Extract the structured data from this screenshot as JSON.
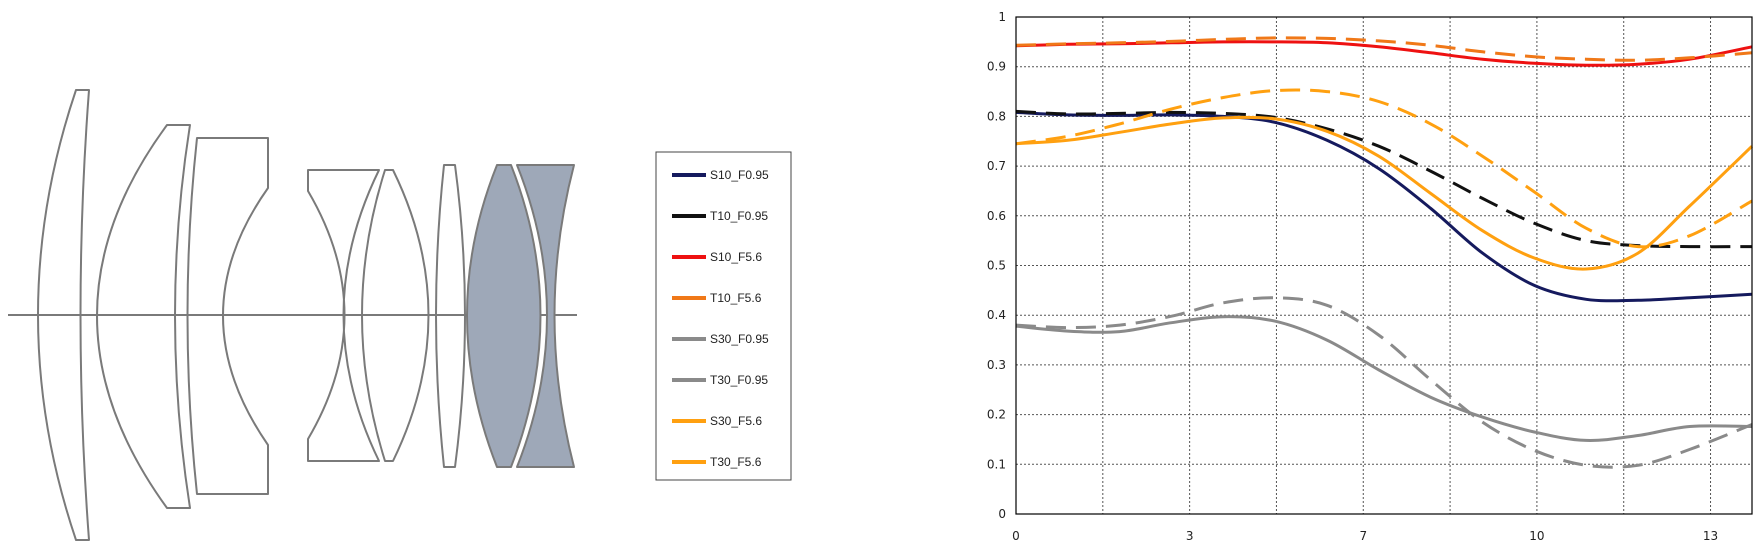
{
  "chart_data": {
    "type": "line",
    "title": "",
    "xlabel": "",
    "ylabel": "",
    "xlim": [
      0,
      14.2
    ],
    "ylim": [
      0,
      1
    ],
    "grid": true,
    "legend_placement": "left of plot",
    "x_ticks": [
      {
        "value": 0,
        "label": "0"
      },
      {
        "value": 3.35,
        "label": "3"
      },
      {
        "value": 6.7,
        "label": "7"
      },
      {
        "value": 10.05,
        "label": "10"
      },
      {
        "value": 13.4,
        "label": "13"
      }
    ],
    "x_minor_gridlines": [
      1.675,
      5.025,
      8.375,
      11.725
    ],
    "y_ticks": [
      {
        "value": 0,
        "label": "0"
      },
      {
        "value": 0.1,
        "label": "0.1"
      },
      {
        "value": 0.2,
        "label": "0.2"
      },
      {
        "value": 0.3,
        "label": "0.3"
      },
      {
        "value": 0.4,
        "label": "0.4"
      },
      {
        "value": 0.5,
        "label": "0.5"
      },
      {
        "value": 0.6,
        "label": "0.6"
      },
      {
        "value": 0.7,
        "label": "0.7"
      },
      {
        "value": 0.8,
        "label": "0.8"
      },
      {
        "value": 0.9,
        "label": "0.9"
      },
      {
        "value": 1,
        "label": "1"
      }
    ],
    "series": [
      {
        "name": "S10_F0.95",
        "color": "#151a5e",
        "dash": "solid",
        "x": [
          0,
          1,
          2,
          3,
          4,
          5,
          6,
          7,
          8,
          9,
          10,
          11,
          12,
          13,
          14.2
        ],
        "y": [
          0.808,
          0.803,
          0.802,
          0.803,
          0.8,
          0.788,
          0.752,
          0.695,
          0.615,
          0.525,
          0.46,
          0.432,
          0.43,
          0.435,
          0.442
        ]
      },
      {
        "name": "T10_F0.95",
        "color": "#111111",
        "dash": "dashed",
        "x": [
          0,
          1,
          2,
          3,
          4,
          5,
          6,
          7,
          8,
          9,
          10,
          11,
          12,
          13,
          14.2
        ],
        "y": [
          0.81,
          0.805,
          0.806,
          0.808,
          0.806,
          0.798,
          0.775,
          0.74,
          0.69,
          0.635,
          0.585,
          0.55,
          0.54,
          0.538,
          0.538
        ]
      },
      {
        "name": "S10_F5.6",
        "color": "#ee1111",
        "dash": "solid",
        "x": [
          0,
          1,
          2,
          3,
          4,
          5,
          6,
          7,
          8,
          9,
          10,
          11,
          12,
          13,
          14.2
        ],
        "y": [
          0.942,
          0.945,
          0.946,
          0.948,
          0.95,
          0.95,
          0.948,
          0.94,
          0.928,
          0.915,
          0.907,
          0.903,
          0.905,
          0.915,
          0.94
        ]
      },
      {
        "name": "T10_F5.6",
        "color": "#f07818",
        "dash": "dashed",
        "x": [
          0,
          1,
          2,
          3,
          4,
          5,
          6,
          7,
          8,
          9,
          10,
          11,
          12,
          13,
          14.2
        ],
        "y": [
          0.943,
          0.946,
          0.948,
          0.951,
          0.955,
          0.958,
          0.957,
          0.952,
          0.943,
          0.93,
          0.92,
          0.915,
          0.913,
          0.918,
          0.928
        ]
      },
      {
        "name": "S30_F0.95",
        "color": "#8a8a8a",
        "dash": "solid",
        "x": [
          0,
          1,
          2,
          3,
          4,
          5,
          6,
          7,
          8,
          9,
          10,
          11,
          12,
          13,
          14.2
        ],
        "y": [
          0.378,
          0.368,
          0.367,
          0.385,
          0.397,
          0.388,
          0.35,
          0.29,
          0.235,
          0.195,
          0.165,
          0.148,
          0.158,
          0.176,
          0.176
        ]
      },
      {
        "name": "T30_F0.95",
        "color": "#8a8a8a",
        "dash": "dashed",
        "x": [
          0,
          1,
          2,
          3,
          4,
          5,
          6,
          7,
          8,
          9,
          10,
          11,
          12,
          13,
          14.2
        ],
        "y": [
          0.38,
          0.375,
          0.38,
          0.398,
          0.425,
          0.435,
          0.42,
          0.36,
          0.27,
          0.185,
          0.128,
          0.098,
          0.098,
          0.13,
          0.18
        ]
      },
      {
        "name": "S30_F5.6",
        "color": "#ffa010",
        "dash": "solid",
        "x": [
          0,
          1,
          2,
          3,
          4,
          5,
          6,
          7,
          8,
          9,
          10,
          11,
          12,
          13,
          14.2
        ],
        "y": [
          0.745,
          0.752,
          0.768,
          0.785,
          0.797,
          0.795,
          0.77,
          0.72,
          0.645,
          0.57,
          0.515,
          0.493,
          0.525,
          0.62,
          0.74
        ]
      },
      {
        "name": "T30_F5.6",
        "color": "#ffa010",
        "dash": "dashed",
        "x": [
          0,
          1,
          2,
          3,
          4,
          5,
          6,
          7,
          8,
          9,
          10,
          11,
          12,
          13,
          14.2
        ],
        "y": [
          0.745,
          0.76,
          0.785,
          0.815,
          0.838,
          0.852,
          0.85,
          0.83,
          0.785,
          0.72,
          0.648,
          0.575,
          0.538,
          0.56,
          0.63
        ]
      }
    ]
  },
  "lens_diagram": {
    "fill_color": "#9ea8b8",
    "stroke_color": "#7a7a7a"
  },
  "legend": {
    "entries": [
      "S10_F0.95",
      "T10_F0.95",
      "S10_F5.6",
      "T10_F5.6",
      "S30_F0.95",
      "T30_F0.95",
      "S30_F5.6",
      "T30_F5.6"
    ]
  }
}
